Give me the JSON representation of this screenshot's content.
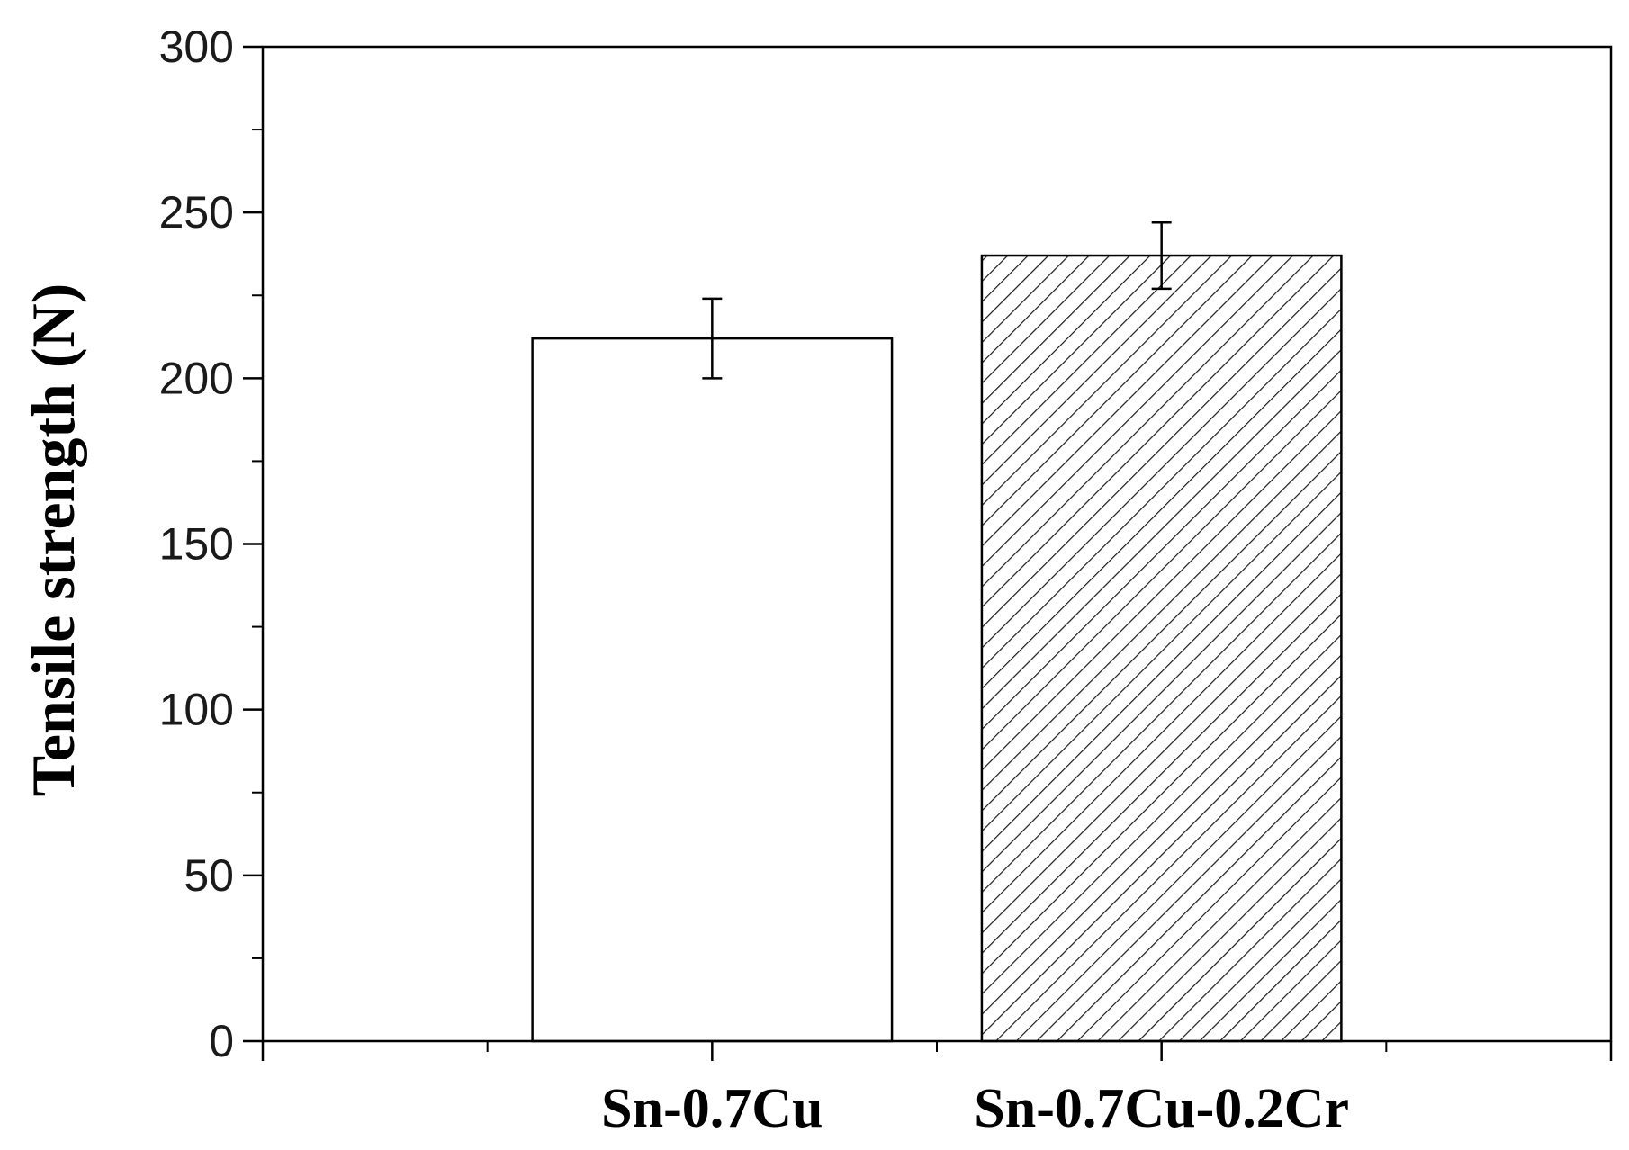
{
  "chart_data": {
    "type": "bar",
    "title": "",
    "xlabel": "",
    "ylabel": "Tensile strength (N)",
    "ylim": [
      0,
      300
    ],
    "yticks": [
      0,
      50,
      100,
      150,
      200,
      250,
      300
    ],
    "categories": [
      "Sn-0.7Cu",
      "Sn-0.7Cu-0.2Cr"
    ],
    "series": [
      {
        "values": [
          212,
          237
        ],
        "errors": [
          12,
          10
        ],
        "fills": [
          "none",
          "diagonal-hatch"
        ]
      }
    ],
    "grid": false,
    "legend": "none",
    "colors": {
      "bar_edge": "#000000",
      "bar_fill": "#ffffff",
      "axis": "#000000"
    }
  }
}
